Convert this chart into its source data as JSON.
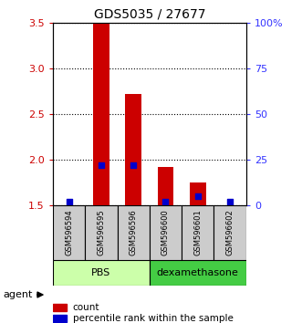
{
  "title": "GDS5035 / 27677",
  "samples": [
    "GSM596594",
    "GSM596595",
    "GSM596596",
    "GSM596600",
    "GSM596601",
    "GSM596602"
  ],
  "count_values": [
    1.5,
    3.5,
    2.72,
    1.92,
    1.75,
    1.5
  ],
  "percentile_values": [
    2,
    22,
    22,
    2,
    5,
    2
  ],
  "ylim": [
    1.5,
    3.5
  ],
  "yticks": [
    1.5,
    2.0,
    2.5,
    3.0,
    3.5
  ],
  "right_yticks": [
    0,
    25,
    50,
    75,
    100
  ],
  "right_yticklabels": [
    "0",
    "25",
    "50",
    "75",
    "100%"
  ],
  "bar_color": "#cc0000",
  "dot_color": "#0000cc",
  "bar_bottom": 1.5,
  "ylabel_left_color": "#cc0000",
  "ylabel_right_color": "#3333ff",
  "agent_label": "agent",
  "legend_count_label": "count",
  "legend_percentile_label": "percentile rank within the sample",
  "group_defs": [
    {
      "label": "PBS",
      "start": 0,
      "end": 2,
      "color": "#ccffaa"
    },
    {
      "label": "dexamethasone",
      "start": 3,
      "end": 5,
      "color": "#44cc44"
    }
  ],
  "sample_box_color": "#cccccc",
  "bar_width": 0.5
}
